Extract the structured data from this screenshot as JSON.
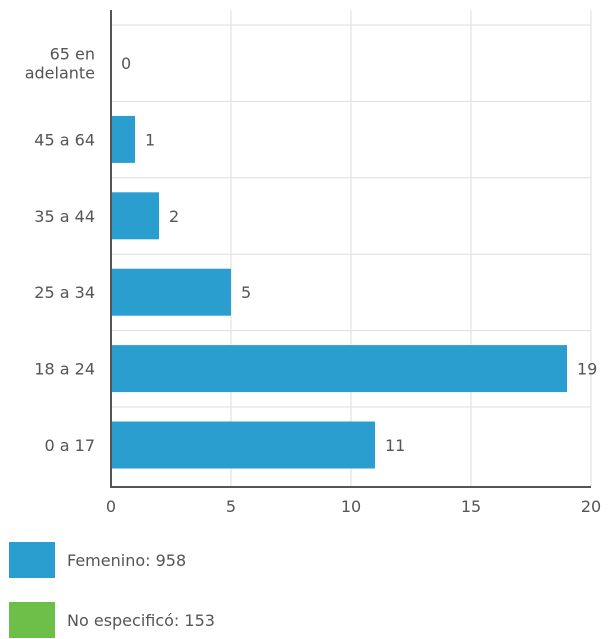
{
  "chart_data": {
    "type": "bar",
    "orientation": "horizontal",
    "categories": [
      [
        "65 en",
        "adelante"
      ],
      [
        "45 a 64"
      ],
      [
        "35 a 44"
      ],
      [
        "25 a 34"
      ],
      [
        "18 a 24"
      ],
      [
        "0 a 17"
      ]
    ],
    "series": [
      {
        "name": "Femenino: 958",
        "color": "#2a9fcf",
        "values": [
          0,
          1,
          2,
          5,
          19,
          11
        ]
      }
    ],
    "value_labels": [
      "0",
      "1",
      "2",
      "5",
      "19",
      "11"
    ],
    "xlim": [
      0,
      20
    ],
    "x_ticks": [
      0,
      5,
      10,
      15,
      20
    ],
    "grid": true,
    "legend_position": "bottom-left"
  },
  "legend": [
    {
      "label": "Femenino: 958",
      "color": "#2a9fcf"
    },
    {
      "label": "No especificó: 153",
      "color": "#6cc04a"
    }
  ]
}
